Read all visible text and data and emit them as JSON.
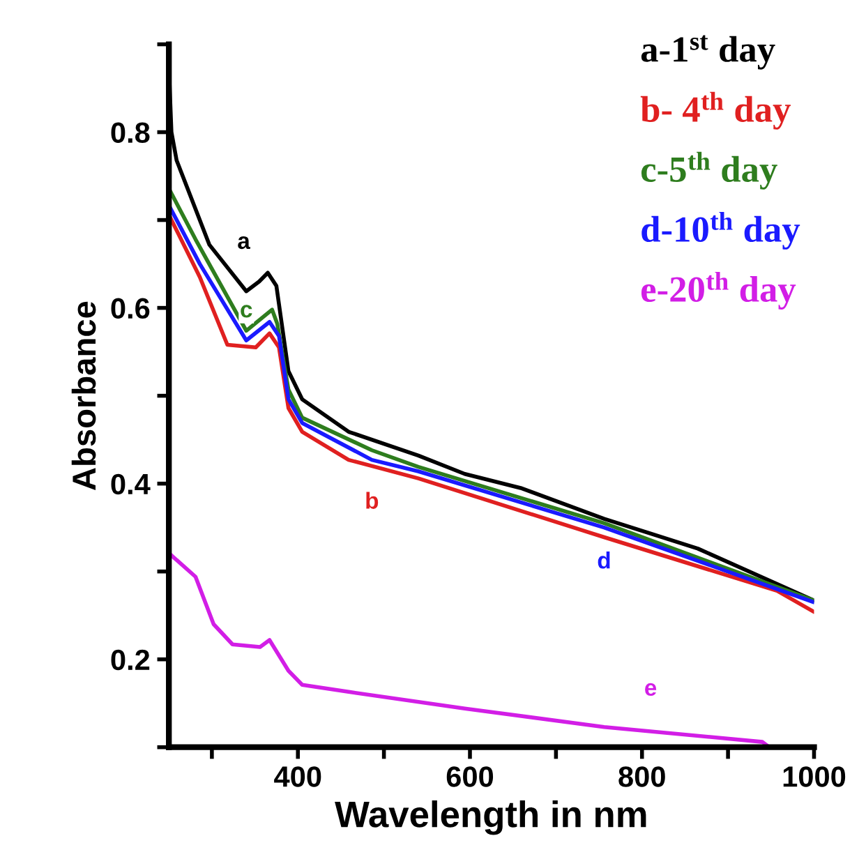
{
  "chart_data": {
    "type": "line",
    "xlabel": "Wavelength in nm",
    "ylabel": "Absorbance",
    "xlim": [
      250,
      1000
    ],
    "ylim": [
      0.1,
      0.9
    ],
    "xticks": [
      {
        "value": 300,
        "label": null
      },
      400,
      {
        "value": 500,
        "label": null
      },
      600,
      {
        "value": 700,
        "label": null
      },
      800,
      {
        "value": 900,
        "label": null
      },
      1000
    ],
    "yticks": [
      {
        "value": 0.1,
        "label": null
      },
      0.2,
      {
        "value": 0.3,
        "label": null
      },
      0.4,
      {
        "value": 0.5,
        "label": null
      },
      0.6,
      {
        "value": 0.7,
        "label": null
      },
      0.8,
      {
        "value": 0.9,
        "label": null
      }
    ],
    "grid": false,
    "legend": "top right",
    "marker": "none",
    "line_style": "solid",
    "series": [
      {
        "name": "a-1$^{st}$ day",
        "color": "#000000",
        "x": [
          250,
          251,
          253,
          259,
          297,
          340,
          355,
          365,
          375,
          389,
          405,
          459,
          540,
          594,
          659,
          756,
          865,
          1000
        ],
        "values": [
          0.88,
          0.85,
          0.8,
          0.768,
          0.672,
          0.619,
          0.63,
          0.64,
          0.625,
          0.528,
          0.496,
          0.459,
          0.432,
          0.411,
          0.395,
          0.36,
          0.326,
          0.267
        ]
      },
      {
        "name": "b- 4$^{th}$ day",
        "color": "#e02020",
        "x": [
          251,
          286,
          318,
          351,
          367,
          378,
          389,
          405,
          459,
          540,
          756,
          957,
          1000
        ],
        "values": [
          0.704,
          0.635,
          0.558,
          0.555,
          0.571,
          0.555,
          0.486,
          0.459,
          0.427,
          0.406,
          0.339,
          0.278,
          0.254
        ]
      },
      {
        "name": "c-5$^{th}$ day",
        "color": "#2e7d1e",
        "x": [
          251,
          281,
          340,
          370,
          376,
          389,
          405,
          486,
          540,
          756,
          1000
        ],
        "values": [
          0.734,
          0.678,
          0.574,
          0.598,
          0.582,
          0.507,
          0.475,
          0.438,
          0.419,
          0.355,
          0.267
        ]
      },
      {
        "name": "d-10$^{th}$ day",
        "color": "#1a1aff",
        "x": [
          251,
          286,
          340,
          367,
          378,
          389,
          405,
          486,
          540,
          756,
          1000
        ],
        "values": [
          0.715,
          0.65,
          0.563,
          0.584,
          0.568,
          0.496,
          0.469,
          0.427,
          0.414,
          0.35,
          0.265
        ]
      },
      {
        "name": "e-20$^{th}$ day",
        "color": "#d21ee6",
        "x": [
          251,
          281,
          302,
          324,
          356,
          367,
          389,
          405,
          459,
          594,
          756,
          940,
          948
        ],
        "values": [
          0.32,
          0.294,
          0.24,
          0.217,
          0.214,
          0.222,
          0.187,
          0.171,
          0.163,
          0.144,
          0.123,
          0.106,
          0.1
        ]
      }
    ],
    "annotations": [
      {
        "text": "a",
        "x": 355,
        "y": 0.63
      },
      {
        "text": "b",
        "x": 486,
        "y": 0.418
      },
      {
        "text": "c",
        "x": 340,
        "y": 0.574
      },
      {
        "text": "d",
        "x": 756,
        "y": 0.35
      },
      {
        "text": "e",
        "x": 810,
        "y": 0.117
      }
    ]
  }
}
